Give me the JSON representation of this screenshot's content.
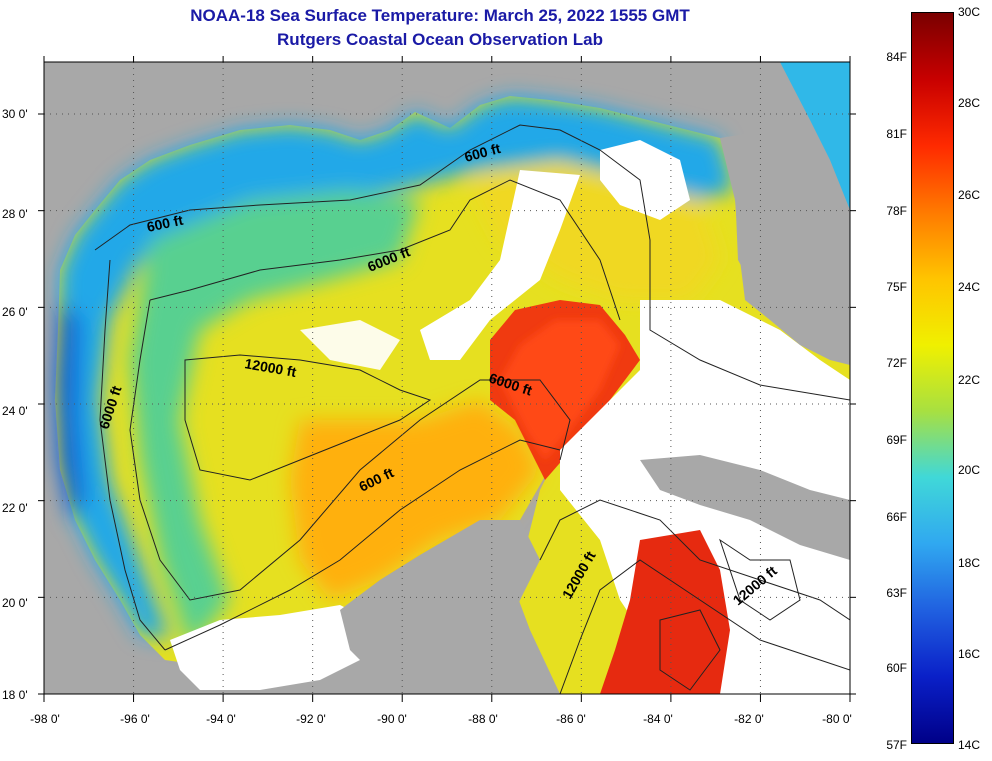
{
  "title": {
    "line1": "NOAA-18 Sea Surface Temperature:  March 25, 2022 1555 GMT",
    "line2": "Rutgers Coastal Ocean Observation Lab"
  },
  "colors": {
    "title": "#1a1aa6",
    "land": "#a8a8a8",
    "cloud": "#ffffff",
    "contour": "#222222"
  },
  "lat_labels": [
    "30 0'",
    "28 0'",
    "26 0'",
    "24 0'",
    "22 0'",
    "20 0'",
    "18 0'"
  ],
  "lon_labels": [
    "-98 0'",
    "-96 0'",
    "-94 0'",
    "-92 0'",
    "-90 0'",
    "-88 0'",
    "-86 0'",
    "-84 0'",
    "-82 0'",
    "-80 0'"
  ],
  "depth_labels": [
    "600 ft",
    "600 ft",
    "600 ft",
    "6000 ft",
    "6000 ft",
    "6000 ft",
    "12000 ft",
    "12000 ft",
    "12000 ft"
  ],
  "colorbar": {
    "fahrenheit": [
      "84F",
      "81F",
      "78F",
      "75F",
      "72F",
      "69F",
      "66F",
      "63F",
      "60F",
      "57F"
    ],
    "celsius": [
      "30C",
      "28C",
      "26C",
      "24C",
      "22C",
      "20C",
      "18C",
      "16C",
      "14C"
    ],
    "gradient": [
      "#7a0000",
      "#c80000",
      "#ff2a00",
      "#ff7a00",
      "#ffc400",
      "#f0f000",
      "#a8e040",
      "#40d8d8",
      "#30a8f0",
      "#2060e0",
      "#0a20c8",
      "#000088"
    ]
  }
}
